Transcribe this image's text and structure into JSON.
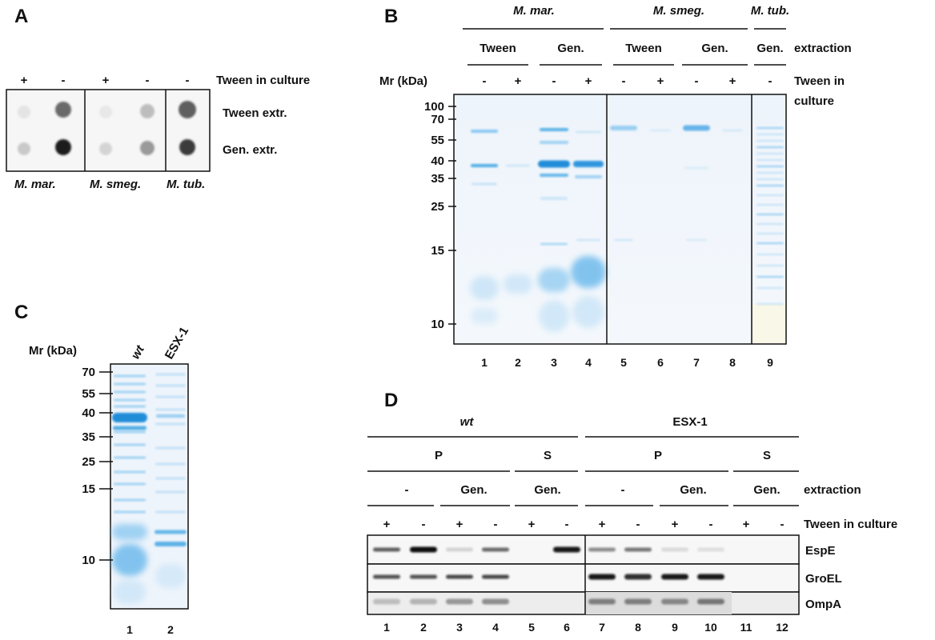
{
  "panel_a": {
    "letter": "A",
    "signs": [
      "+",
      "-",
      "+",
      "-",
      "-"
    ],
    "condition_label": "Tween in culture",
    "row_labels": [
      "Tween extr.",
      "Gen. extr."
    ],
    "species": [
      "M. mar.",
      "M. smeg.",
      "M. tub."
    ]
  },
  "panel_b": {
    "letter": "B",
    "species": [
      "M. mar.",
      "M. smeg.",
      "M. tub."
    ],
    "extractions": [
      "Tween",
      "Gen.",
      "Tween",
      "Gen.",
      "Gen."
    ],
    "extraction_label": "extraction",
    "mr_label": "Mr (kDa)",
    "signs": [
      "-",
      "+",
      "-",
      "+",
      "-",
      "+",
      "-",
      "+",
      "-"
    ],
    "condition_label_line1": "Tween in",
    "condition_label_line2": "culture",
    "markers": [
      "100",
      "70",
      "55",
      "40",
      "35",
      "25",
      "15",
      "10"
    ],
    "lanes": [
      "1",
      "2",
      "3",
      "4",
      "5",
      "6",
      "7",
      "8",
      "9"
    ]
  },
  "panel_c": {
    "letter": "C",
    "mr_label": "Mr (kDa)",
    "lane_labels": [
      "wt",
      "ESX-1"
    ],
    "markers": [
      "70",
      "55",
      "40",
      "35",
      "25",
      "15",
      "10"
    ],
    "lanes": [
      "1",
      "2"
    ]
  },
  "panel_d": {
    "letter": "D",
    "strains": [
      "wt",
      "ESX-1"
    ],
    "fractions": [
      "P",
      "S",
      "P",
      "S"
    ],
    "extractions": [
      "-",
      "Gen.",
      "Gen.",
      "-",
      "Gen.",
      "Gen."
    ],
    "extraction_label": "extraction",
    "signs": [
      "+",
      "-",
      "+",
      "-",
      "+",
      "-",
      "+",
      "-",
      "+",
      "-",
      "+",
      "-"
    ],
    "condition_label": "Tween in culture",
    "blots": [
      "EspE",
      "GroEL",
      "OmpA"
    ],
    "lanes": [
      "1",
      "2",
      "3",
      "4",
      "5",
      "6",
      "7",
      "8",
      "9",
      "10",
      "11",
      "12"
    ]
  }
}
